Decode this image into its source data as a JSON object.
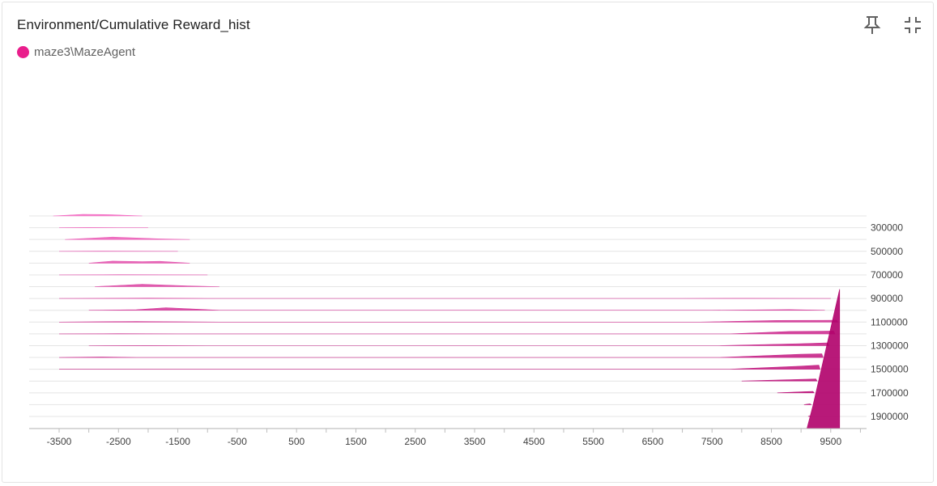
{
  "card": {
    "title": "Environment/Cumulative Reward_hist",
    "legend_label": "maze3\\MazeAgent",
    "legend_color": "#e91e8c"
  },
  "icons": {
    "pin": "pin-icon",
    "collapse": "collapse-icon"
  },
  "chart_data": {
    "type": "histogram-ridgeline",
    "title": "Environment/Cumulative Reward_hist",
    "series_name": "maze3\\MazeAgent",
    "x_range": [
      -4000,
      10500
    ],
    "x_ticks": [
      -3500,
      -2500,
      -1500,
      -500,
      500,
      1500,
      2500,
      3500,
      4500,
      5500,
      6500,
      7500,
      8500,
      9500
    ],
    "y_range": [
      200000,
      2000000
    ],
    "y_ticks": [
      300000,
      500000,
      700000,
      900000,
      1100000,
      1300000,
      1500000,
      1700000,
      1900000
    ],
    "slice_step": 100000,
    "color_start": "#f36fc4",
    "color_end": "#b0006a",
    "slices": [
      {
        "step": 200000,
        "points": [
          [
            -3600,
            0
          ],
          [
            -3100,
            2
          ],
          [
            -2600,
            1.5
          ],
          [
            -2100,
            0
          ]
        ]
      },
      {
        "step": 300000,
        "points": [
          [
            -3500,
            0
          ],
          [
            -3000,
            0.3
          ],
          [
            -2500,
            0.1
          ],
          [
            -2000,
            0
          ]
        ]
      },
      {
        "step": 400000,
        "points": [
          [
            -3400,
            0
          ],
          [
            -2600,
            3
          ],
          [
            -1800,
            0.8
          ],
          [
            -1300,
            0
          ]
        ]
      },
      {
        "step": 500000,
        "points": [
          [
            -3500,
            0
          ],
          [
            -2800,
            0.2
          ],
          [
            -1500,
            0
          ]
        ]
      },
      {
        "step": 600000,
        "points": [
          [
            -3000,
            0
          ],
          [
            -2600,
            2.5
          ],
          [
            -2100,
            1.8
          ],
          [
            -1800,
            2.2
          ],
          [
            -1300,
            0
          ]
        ]
      },
      {
        "step": 700000,
        "points": [
          [
            -3500,
            0
          ],
          [
            -2500,
            0.2
          ],
          [
            -1000,
            0
          ]
        ]
      },
      {
        "step": 800000,
        "points": [
          [
            -2900,
            0
          ],
          [
            -2100,
            3
          ],
          [
            -1300,
            0.8
          ],
          [
            -800,
            0
          ]
        ]
      },
      {
        "step": 900000,
        "points": [
          [
            -3500,
            0
          ],
          [
            -2000,
            0.4
          ],
          [
            -700,
            0
          ],
          [
            7000,
            0
          ],
          [
            8000,
            0.2
          ],
          [
            9500,
            0
          ]
        ]
      },
      {
        "step": 1000000,
        "points": [
          [
            -3000,
            0
          ],
          [
            -2200,
            0.6
          ],
          [
            -1700,
            3.2
          ],
          [
            -800,
            0
          ],
          [
            7500,
            0
          ],
          [
            8800,
            0.8
          ],
          [
            9400,
            0
          ]
        ]
      },
      {
        "step": 1100000,
        "points": [
          [
            -3500,
            0
          ],
          [
            -2200,
            0.8
          ],
          [
            -800,
            0
          ],
          [
            7300,
            0
          ],
          [
            8600,
            2
          ],
          [
            9600,
            2.2
          ],
          [
            9620,
            0
          ]
        ]
      },
      {
        "step": 1200000,
        "points": [
          [
            -3500,
            0
          ],
          [
            -2500,
            0.2
          ],
          [
            -1500,
            0
          ],
          [
            7800,
            0
          ],
          [
            8800,
            3
          ],
          [
            9550,
            3.5
          ],
          [
            9570,
            0
          ]
        ]
      },
      {
        "step": 1300000,
        "points": [
          [
            -3000,
            0
          ],
          [
            -2000,
            0.2
          ],
          [
            -1000,
            0
          ],
          [
            7600,
            0
          ],
          [
            9000,
            2.5
          ],
          [
            9450,
            3.5
          ],
          [
            9470,
            0
          ]
        ]
      },
      {
        "step": 1400000,
        "points": [
          [
            -3500,
            0
          ],
          [
            -2800,
            0.6
          ],
          [
            -2200,
            0
          ],
          [
            7600,
            0
          ],
          [
            9000,
            4
          ],
          [
            9350,
            4.5
          ],
          [
            9370,
            0
          ]
        ]
      },
      {
        "step": 1500000,
        "points": [
          [
            -3500,
            0
          ],
          [
            -2500,
            0.1
          ],
          [
            -1500,
            0
          ],
          [
            7800,
            0
          ],
          [
            9000,
            3.8
          ],
          [
            9300,
            5
          ],
          [
            9320,
            0
          ]
        ]
      },
      {
        "step": 1600000,
        "points": [
          [
            8000,
            0
          ],
          [
            9000,
            2
          ],
          [
            9250,
            2.5
          ],
          [
            9270,
            0
          ]
        ]
      },
      {
        "step": 1700000,
        "points": [
          [
            8600,
            0
          ],
          [
            9100,
            1.5
          ],
          [
            9200,
            1.8
          ],
          [
            9220,
            0
          ]
        ]
      },
      {
        "step": 1800000,
        "points": [
          [
            9050,
            0
          ],
          [
            9150,
            1
          ],
          [
            9170,
            0
          ]
        ]
      },
      {
        "step": 1900000,
        "points": [
          [
            9120,
            0
          ],
          [
            9140,
            0.6
          ],
          [
            9160,
            0
          ]
        ]
      },
      {
        "step": 2000000,
        "points": [
          [
            9100,
            0
          ],
          [
            9200,
            28
          ],
          [
            9650,
            172
          ],
          [
            9650,
            0
          ]
        ]
      }
    ]
  }
}
